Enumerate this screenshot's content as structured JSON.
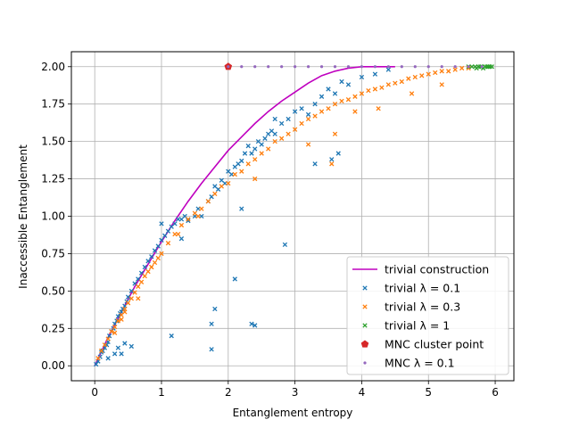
{
  "chart_data": {
    "type": "scatter",
    "xlabel": "Entanglement entropy",
    "ylabel": "Inaccessible Entanglement",
    "xlim": [
      -0.35,
      6.28
    ],
    "ylim": [
      -0.1,
      2.1
    ],
    "xticks": [
      0,
      1,
      2,
      3,
      4,
      5,
      6
    ],
    "xtick_labels": [
      "0",
      "1",
      "2",
      "3",
      "4",
      "5",
      "6"
    ],
    "yticks": [
      0,
      0.25,
      0.5,
      0.75,
      1.0,
      1.25,
      1.5,
      1.75,
      2.0
    ],
    "ytick_labels": [
      "0.00",
      "0.25",
      "0.50",
      "0.75",
      "1.00",
      "1.25",
      "1.50",
      "1.75",
      "2.00"
    ],
    "grid": true,
    "legend_position": "lower-right",
    "colors": {
      "line": "#bf00bf",
      "blue": "#1f77b4",
      "orange": "#ff7f0e",
      "green": "#2ca02c",
      "red": "#d62728",
      "purple": "#9467bd"
    },
    "series": [
      {
        "name": "trivial construction",
        "kind": "line",
        "color": "#bf00bf",
        "x": [
          0,
          0.2,
          0.4,
          0.6,
          0.8,
          1.0,
          1.2,
          1.4,
          1.6,
          1.8,
          2.0,
          2.2,
          2.4,
          2.6,
          2.8,
          3.0,
          3.2,
          3.4,
          3.6,
          3.8,
          4.0,
          4.2,
          4.5
        ],
        "y": [
          0,
          0.19,
          0.36,
          0.53,
          0.68,
          0.83,
          0.97,
          1.1,
          1.22,
          1.33,
          1.44,
          1.53,
          1.62,
          1.7,
          1.77,
          1.83,
          1.89,
          1.94,
          1.97,
          1.99,
          2.0,
          2.0,
          2.0
        ]
      },
      {
        "name": "trivial λ = 0.1",
        "kind": "scatter",
        "marker": "x",
        "color": "#1f77b4",
        "x": [
          0.02,
          0.05,
          0.08,
          0.1,
          0.12,
          0.15,
          0.18,
          0.2,
          0.22,
          0.25,
          0.28,
          0.3,
          0.33,
          0.35,
          0.38,
          0.4,
          0.42,
          0.45,
          0.48,
          0.5,
          0.55,
          0.6,
          0.65,
          0.7,
          0.75,
          0.8,
          0.85,
          0.9,
          0.95,
          1.0,
          1.05,
          1.1,
          1.15,
          1.2,
          1.25,
          1.3,
          1.35,
          1.4,
          1.5,
          1.55,
          1.6,
          1.7,
          1.75,
          1.8,
          1.85,
          1.9,
          1.95,
          2.0,
          2.05,
          2.1,
          2.15,
          2.2,
          2.25,
          2.3,
          2.35,
          2.4,
          2.45,
          2.5,
          2.55,
          2.6,
          2.65,
          2.7,
          2.8,
          2.9,
          3.0,
          3.1,
          3.2,
          3.3,
          3.4,
          3.5,
          3.6,
          3.7,
          3.8,
          4.0,
          4.2,
          4.4,
          0.35,
          0.4,
          0.55,
          1.15,
          1.75,
          1.8,
          1.75,
          2.1,
          2.35,
          2.4,
          2.85,
          0.2,
          0.3,
          0.45,
          1.0,
          1.3,
          2.2,
          2.7,
          3.3,
          3.55,
          3.65
        ],
        "y": [
          0.01,
          0.03,
          0.06,
          0.09,
          0.1,
          0.12,
          0.14,
          0.16,
          0.2,
          0.23,
          0.25,
          0.28,
          0.3,
          0.33,
          0.35,
          0.36,
          0.38,
          0.4,
          0.43,
          0.46,
          0.5,
          0.55,
          0.58,
          0.62,
          0.66,
          0.7,
          0.73,
          0.77,
          0.8,
          0.84,
          0.87,
          0.9,
          0.93,
          0.95,
          0.98,
          0.98,
          1.0,
          0.97,
          1.0,
          1.05,
          1.0,
          1.1,
          1.13,
          1.2,
          1.18,
          1.24,
          1.22,
          1.3,
          1.28,
          1.33,
          1.35,
          1.37,
          1.42,
          1.47,
          1.42,
          1.45,
          1.5,
          1.48,
          1.52,
          1.55,
          1.57,
          1.55,
          1.62,
          1.65,
          1.7,
          1.72,
          1.68,
          1.75,
          1.8,
          1.85,
          1.82,
          1.9,
          1.88,
          1.93,
          1.95,
          1.98,
          0.12,
          0.08,
          0.13,
          0.2,
          0.11,
          0.38,
          0.28,
          0.58,
          0.28,
          0.27,
          0.81,
          0.05,
          0.08,
          0.15,
          0.95,
          0.85,
          1.05,
          1.65,
          1.35,
          1.38,
          1.42
        ]
      },
      {
        "name": "trivial λ = 0.3",
        "kind": "scatter",
        "marker": "x",
        "color": "#ff7f0e",
        "x": [
          0.05,
          0.1,
          0.15,
          0.2,
          0.25,
          0.3,
          0.35,
          0.4,
          0.45,
          0.5,
          0.55,
          0.6,
          0.65,
          0.7,
          0.75,
          0.8,
          0.85,
          0.9,
          0.95,
          1.0,
          1.1,
          1.2,
          1.3,
          1.4,
          1.5,
          1.6,
          1.7,
          1.8,
          1.9,
          2.0,
          2.1,
          2.2,
          2.3,
          2.4,
          2.5,
          2.6,
          2.7,
          2.8,
          2.9,
          3.0,
          3.1,
          3.2,
          3.3,
          3.4,
          3.5,
          3.6,
          3.7,
          3.8,
          3.9,
          4.0,
          4.1,
          4.2,
          4.3,
          4.4,
          4.5,
          4.6,
          4.7,
          4.8,
          4.9,
          5.0,
          5.1,
          5.2,
          5.3,
          5.4,
          5.5,
          5.6,
          0.3,
          0.4,
          0.45,
          0.65,
          0.85,
          1.25,
          1.55,
          2.4,
          3.2,
          3.55,
          3.6,
          3.9,
          4.25,
          4.75,
          5.2
        ],
        "y": [
          0.05,
          0.1,
          0.14,
          0.18,
          0.23,
          0.26,
          0.3,
          0.34,
          0.38,
          0.42,
          0.45,
          0.49,
          0.53,
          0.56,
          0.6,
          0.63,
          0.66,
          0.69,
          0.72,
          0.75,
          0.82,
          0.88,
          0.94,
          0.98,
          1.02,
          1.05,
          1.1,
          1.15,
          1.2,
          1.22,
          1.28,
          1.3,
          1.35,
          1.38,
          1.42,
          1.45,
          1.5,
          1.52,
          1.55,
          1.58,
          1.62,
          1.65,
          1.67,
          1.7,
          1.72,
          1.75,
          1.77,
          1.78,
          1.8,
          1.82,
          1.84,
          1.85,
          1.86,
          1.88,
          1.89,
          1.9,
          1.92,
          1.93,
          1.94,
          1.95,
          1.96,
          1.97,
          1.97,
          1.98,
          1.99,
          1.99,
          0.22,
          0.31,
          0.36,
          0.45,
          0.66,
          0.88,
          1.0,
          1.25,
          1.48,
          1.35,
          1.55,
          1.7,
          1.72,
          1.82,
          1.88
        ]
      },
      {
        "name": "trivial λ = 1",
        "kind": "scatter",
        "marker": "x",
        "color": "#2ca02c",
        "x": [
          5.6,
          5.65,
          5.7,
          5.72,
          5.75,
          5.78,
          5.8,
          5.82,
          5.85,
          5.88,
          5.9,
          5.92,
          5.95
        ],
        "y": [
          2.0,
          2.0,
          2.0,
          1.99,
          2.0,
          2.0,
          2.0,
          1.99,
          2.0,
          2.0,
          2.0,
          2.0,
          2.0
        ]
      },
      {
        "name": "MNC cluster point",
        "kind": "scatter",
        "marker": "pentagon",
        "color": "#d62728",
        "x": [
          2.0
        ],
        "y": [
          2.0
        ]
      },
      {
        "name": "MNC λ = 0.1",
        "kind": "scatter",
        "marker": "dot",
        "color": "#9467bd",
        "x": [
          2.0,
          2.2,
          2.4,
          2.6,
          2.8,
          3.0,
          3.2,
          3.4,
          3.6,
          3.8,
          4.0,
          4.2,
          4.4,
          4.6,
          4.8,
          5.0,
          5.2,
          5.4,
          5.6,
          5.8
        ],
        "y": [
          2.0,
          2.0,
          2.0,
          2.0,
          2.0,
          2.0,
          2.0,
          2.0,
          2.0,
          2.0,
          2.0,
          2.0,
          2.0,
          2.0,
          2.0,
          2.0,
          2.0,
          2.0,
          2.0,
          2.0
        ]
      }
    ]
  }
}
